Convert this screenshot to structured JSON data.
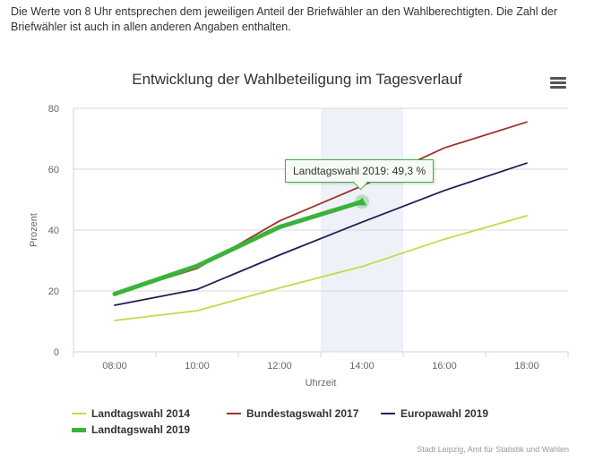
{
  "intro_text": "Die Werte von 8 Uhr entsprechen dem jeweiligen Anteil der Briefwähler an den Wahlberechtigten. Die Zahl der Briefwähler ist auch in allen anderen Angaben enthalten.",
  "menu_icon": "hamburger-menu-icon",
  "tooltip": {
    "text": "Landtagswahl 2019: 49,3 %"
  },
  "credits": "Stadt Leipzig, Amt für Statistik und Wahlen",
  "chart_data": {
    "type": "line",
    "title": "Entwicklung der Wahlbeteiligung im Tagesverlauf",
    "xlabel": "Uhrzeit",
    "ylabel": "Prozent",
    "categories": [
      "08:00",
      "10:00",
      "12:00",
      "14:00",
      "16:00",
      "18:00"
    ],
    "ylim": [
      0,
      80
    ],
    "yticks": [
      0,
      20,
      40,
      60,
      80
    ],
    "grid": true,
    "highlighted_category": "14:00",
    "legend_position": "bottom-left",
    "series": [
      {
        "name": "Landtagswahl 2014",
        "color": "#c5d84a",
        "values": [
          10.3,
          13.5,
          21,
          28,
          37,
          44.7
        ]
      },
      {
        "name": "Bundestagswahl 2017",
        "color": "#a0302a",
        "values": [
          19,
          27.4,
          43,
          54.5,
          67,
          75.5
        ]
      },
      {
        "name": "Europawahl 2019",
        "color": "#1f1f55",
        "values": [
          15.3,
          20.5,
          31.8,
          42.6,
          53,
          62
        ]
      },
      {
        "name": "Landtagswahl 2019",
        "color": "#3bb33b",
        "values": [
          19,
          28.2,
          41,
          49.3,
          null,
          null
        ]
      }
    ]
  }
}
